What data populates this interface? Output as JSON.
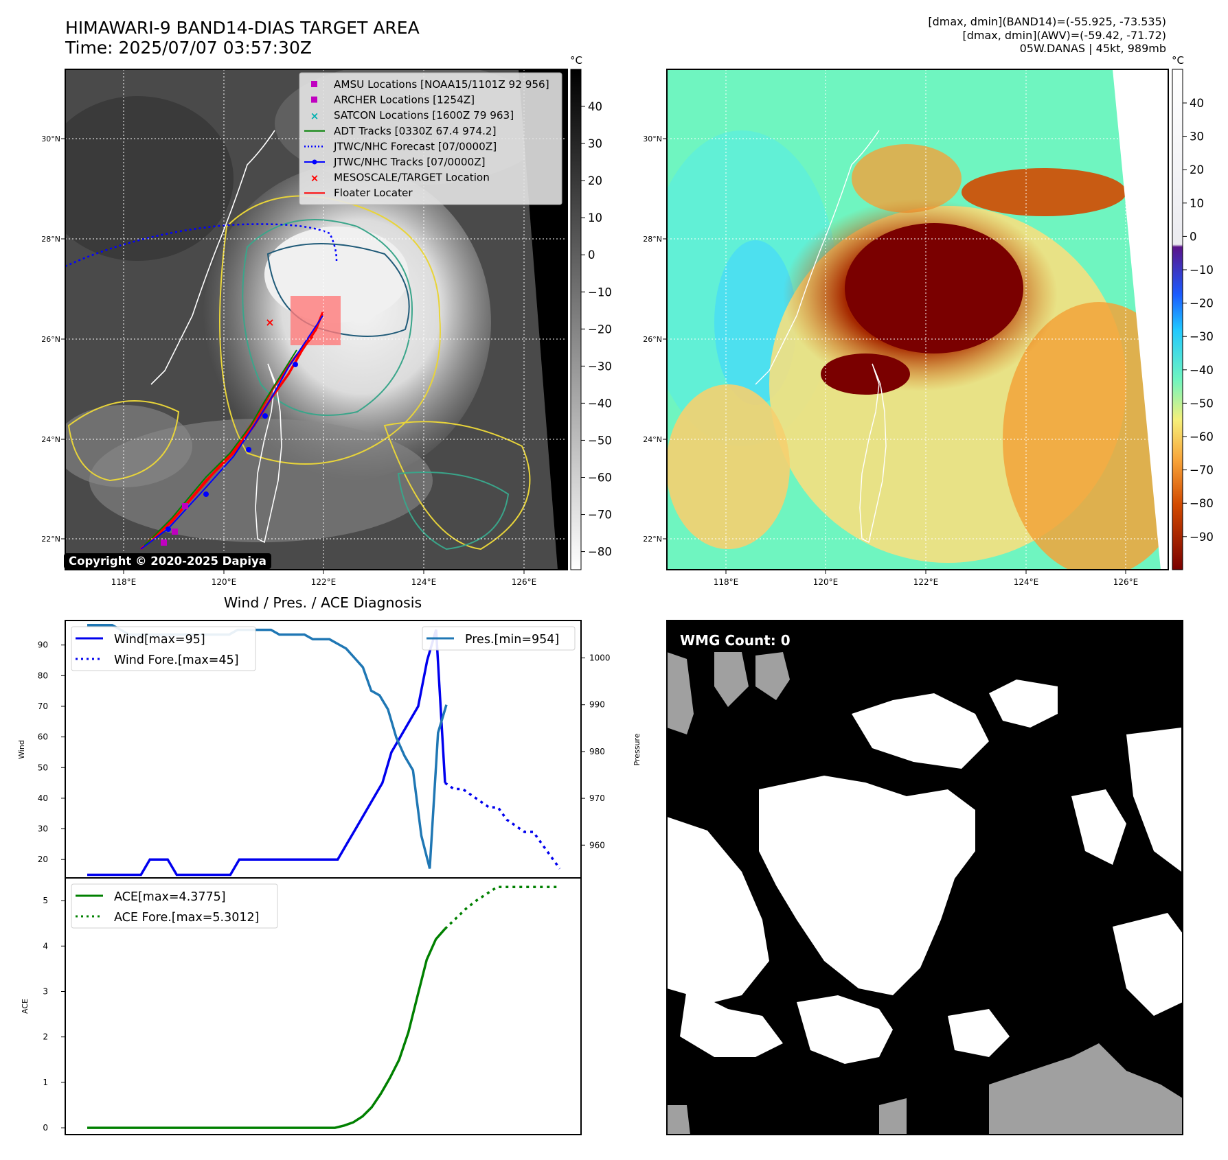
{
  "header": {
    "title_line1": "HIMAWARI-9 BAND14-DIAS TARGET AREA",
    "title_line2": "Time: 2025/07/07 03:57:30Z",
    "info_line1": "[dmax, dmin](BAND14)=(-55.925, -73.535)",
    "info_line2": "[dmax, dmin](AWV)=(-59.42, -71.72)",
    "info_line3": "05W.DANAS | 45kt, 989mb"
  },
  "map_axes": {
    "lon_ticks": [
      "118°E",
      "120°E",
      "122°E",
      "124°E",
      "126°E"
    ],
    "lat_ticks": [
      "30°N",
      "28°N",
      "26°N",
      "24°N",
      "22°N"
    ]
  },
  "ir_panel": {
    "legend": [
      {
        "label": "AMSU Locations [NOAA15/1101Z 92 956]",
        "color": "#c000c0",
        "marker": "square"
      },
      {
        "label": "ARCHER Locations [1254Z]",
        "color": "#c000c0",
        "marker": "square"
      },
      {
        "label": "SATCON Locations [1600Z 79 963]",
        "color": "#00b0b0",
        "marker": "x"
      },
      {
        "label": "ADT Tracks [0330Z 67.4 974.2]",
        "color": "#008000",
        "marker": "line"
      },
      {
        "label": "JTWC/NHC Forecast [07/0000Z]",
        "color": "#0000ff",
        "marker": "dotted"
      },
      {
        "label": "JTWC/NHC Tracks [07/0000Z]",
        "color": "#0000ff",
        "marker": "line-dot"
      },
      {
        "label": "MESOSCALE/TARGET Location",
        "color": "#ff0000",
        "marker": "x"
      },
      {
        "label": "Floater Locater",
        "color": "#ff0000",
        "marker": "line"
      }
    ],
    "colorbar_unit": "°C",
    "colorbar_ticks": [
      "40",
      "30",
      "20",
      "10",
      "0",
      "−10",
      "−20",
      "−30",
      "−40",
      "−50",
      "−60",
      "−70",
      "−80"
    ],
    "copyright": "Copyright © 2020-2025 Dapiya"
  },
  "color_panel": {
    "colorbar_unit": "°C",
    "colorbar_ticks": [
      "40",
      "30",
      "20",
      "10",
      "0",
      "−10",
      "−20",
      "−30",
      "−40",
      "−50",
      "−60",
      "−70",
      "−80",
      "−90"
    ],
    "colors": {
      "warm": "#6ff5c0",
      "cold": "#7a0000"
    }
  },
  "wmg_panel": {
    "label": "WMG Count: 0"
  },
  "chart_data": [
    {
      "type": "line",
      "title": "Wind / Pres. / ACE Diagnosis",
      "ylabel": "Wind",
      "y2label": "Pressure",
      "ylim": [
        14,
        98
      ],
      "y2lim": [
        953,
        1008
      ],
      "yticks": [
        20,
        30,
        40,
        50,
        60,
        70,
        80,
        90
      ],
      "y2ticks": [
        960,
        970,
        980,
        990,
        1000
      ],
      "series": [
        {
          "name": "Wind[max=95]",
          "style": "solid",
          "color": "#0000ee",
          "values": [
            15,
            15,
            15,
            15,
            15,
            15,
            15,
            20,
            20,
            20,
            15,
            15,
            15,
            15,
            15,
            15,
            15,
            20,
            20,
            20,
            20,
            20,
            20,
            20,
            20,
            20,
            20,
            20,
            20,
            25,
            30,
            35,
            40,
            45,
            55,
            60,
            65,
            70,
            85,
            95,
            45
          ]
        },
        {
          "name": "Wind Fore.[max=45]",
          "style": "dotted",
          "color": "#0000ee",
          "values": [
            45,
            43,
            43,
            41,
            39,
            37,
            37,
            33,
            31,
            29,
            29,
            25,
            21,
            17
          ]
        },
        {
          "name": "Pres.[min=954]",
          "style": "solid",
          "color": "#1f77b4",
          "values": [
            1007,
            1007,
            1007,
            1007,
            1006,
            1005,
            1005,
            1005,
            1005,
            1005,
            1005,
            1005,
            1005,
            1005,
            1005,
            1005,
            1005,
            1005,
            1006,
            1006,
            1006,
            1006,
            1006,
            1005,
            1005,
            1005,
            1005,
            1004,
            1004,
            1004,
            1003,
            1002,
            1000,
            998,
            993,
            992,
            989,
            983,
            979,
            976,
            962,
            955,
            984,
            990
          ]
        }
      ]
    },
    {
      "type": "line",
      "ylabel": "ACE",
      "ylim": [
        -0.15,
        5.5
      ],
      "yticks": [
        0,
        1,
        2,
        3,
        4,
        5
      ],
      "series": [
        {
          "name": "ACE[max=4.3775]",
          "style": "solid",
          "color": "#008000",
          "values": [
            0,
            0,
            0,
            0,
            0,
            0,
            0,
            0,
            0,
            0,
            0,
            0,
            0,
            0,
            0,
            0,
            0,
            0,
            0,
            0,
            0,
            0,
            0,
            0,
            0,
            0,
            0,
            0,
            0.05,
            0.12,
            0.25,
            0.45,
            0.75,
            1.1,
            1.5,
            2.1,
            2.9,
            3.7,
            4.15,
            4.38
          ]
        },
        {
          "name": "ACE Fore.[max=5.3012]",
          "style": "dotted",
          "color": "#008000",
          "values": [
            4.38,
            4.6,
            4.82,
            5.0,
            5.15,
            5.3,
            5.3,
            5.3,
            5.3,
            5.3,
            5.3,
            5.3
          ]
        }
      ]
    }
  ]
}
